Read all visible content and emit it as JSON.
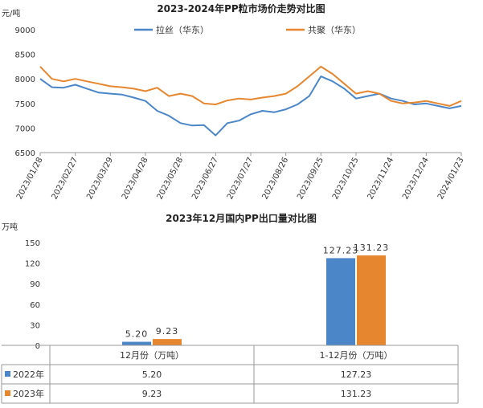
{
  "chart_data": [
    {
      "type": "line",
      "title": "2023-2024年PP粒市场价走势对比图",
      "ylabel": "元/吨",
      "ylim": [
        6500,
        9000
      ],
      "yticks": [
        6500,
        7000,
        7500,
        8000,
        8500,
        9000
      ],
      "grid": false,
      "legend_placement": "top-center",
      "x_ticks": [
        "2023/01/28",
        "2023/02/27",
        "2023/03/29",
        "2023/04/28",
        "2023/05/28",
        "2023/06/27",
        "2023/07/27",
        "2023/08/26",
        "2023/09/25",
        "2023/10/25",
        "2023/11/24",
        "2023/12/24",
        "2024/01/23"
      ],
      "x": [
        "2023/01/28",
        "2023/02/07",
        "2023/02/17",
        "2023/02/27",
        "2023/03/09",
        "2023/03/19",
        "2023/03/29",
        "2023/04/08",
        "2023/04/18",
        "2023/04/28",
        "2023/05/08",
        "2023/05/18",
        "2023/05/28",
        "2023/06/07",
        "2023/06/17",
        "2023/06/27",
        "2023/07/07",
        "2023/07/17",
        "2023/07/27",
        "2023/08/06",
        "2023/08/16",
        "2023/08/26",
        "2023/09/05",
        "2023/09/15",
        "2023/09/25",
        "2023/10/05",
        "2023/10/15",
        "2023/10/25",
        "2023/11/04",
        "2023/11/14",
        "2023/11/24",
        "2023/12/04",
        "2023/12/14",
        "2023/12/24",
        "2024/01/03",
        "2024/01/13",
        "2024/01/23"
      ],
      "series": [
        {
          "name": "拉丝（华东）",
          "color": "#4a86c8",
          "values": [
            8000,
            7830,
            7820,
            7880,
            7800,
            7720,
            7700,
            7680,
            7620,
            7550,
            7350,
            7250,
            7100,
            7050,
            7060,
            6850,
            7100,
            7150,
            7280,
            7350,
            7320,
            7380,
            7480,
            7650,
            8050,
            7950,
            7800,
            7600,
            7650,
            7700,
            7600,
            7550,
            7480,
            7500,
            7450,
            7400,
            7450
          ]
        },
        {
          "name": "共聚（华东）",
          "color": "#e6862f",
          "values": [
            8250,
            8000,
            7950,
            8000,
            7950,
            7900,
            7850,
            7830,
            7800,
            7750,
            7820,
            7650,
            7700,
            7650,
            7500,
            7480,
            7560,
            7600,
            7580,
            7620,
            7650,
            7700,
            7850,
            8050,
            8250,
            8100,
            7900,
            7700,
            7750,
            7700,
            7550,
            7500,
            7520,
            7550,
            7500,
            7450,
            7550
          ]
        }
      ]
    },
    {
      "type": "bar",
      "title": "2023年12月国内PP出口量对比图",
      "ylabel": "万吨",
      "ylim": [
        0,
        150
      ],
      "yticks": [
        0,
        30,
        60,
        90,
        120,
        150
      ],
      "categories": [
        "12月份（万吨）",
        "1-12月份（万吨）"
      ],
      "series": [
        {
          "name": "2022年",
          "color": "#4a86c8",
          "values": [
            5.2,
            127.23
          ],
          "labels": [
            "5.20",
            "127.23"
          ]
        },
        {
          "name": "2023年",
          "color": "#e6862f",
          "values": [
            9.23,
            131.23
          ],
          "labels": [
            "9.23",
            "131.23"
          ]
        }
      ],
      "table": true
    }
  ]
}
